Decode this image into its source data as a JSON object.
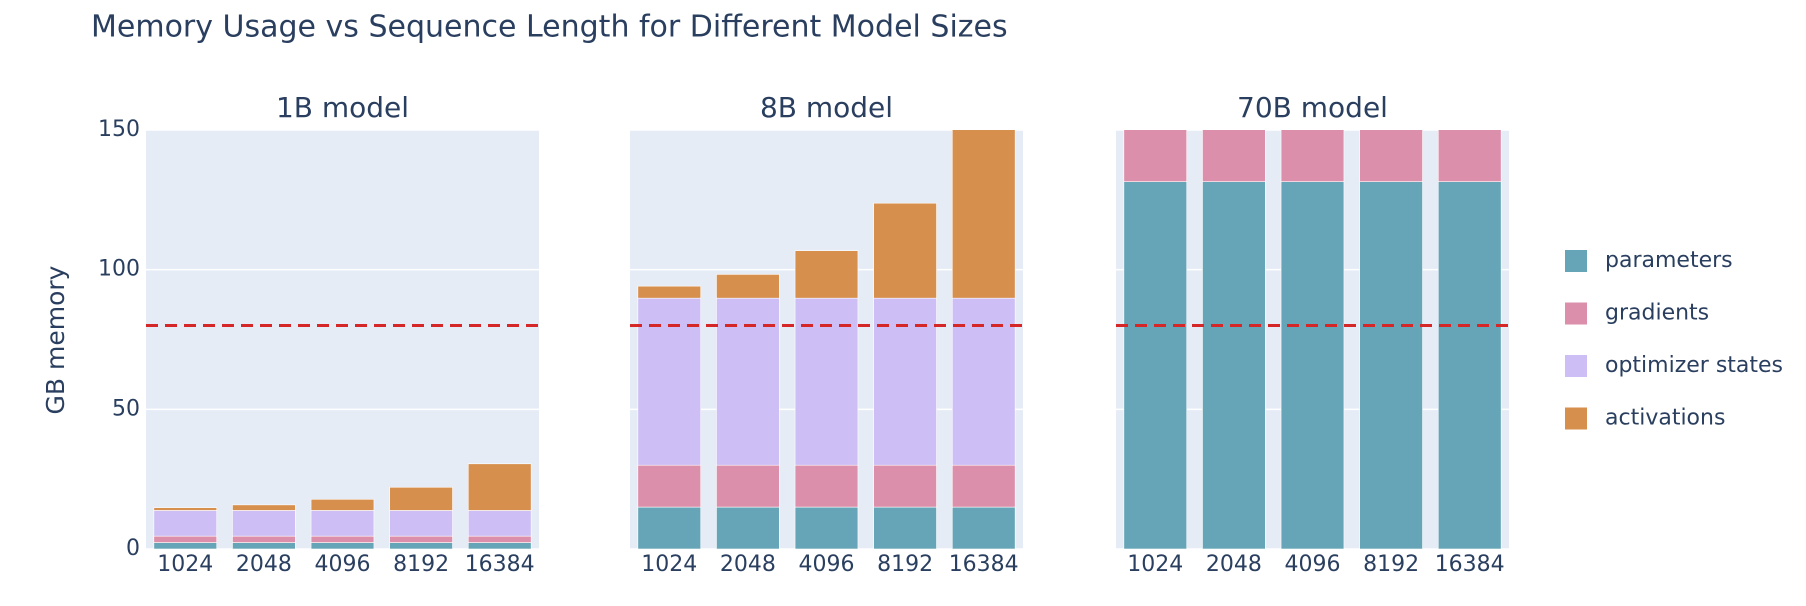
{
  "chart_data": {
    "type": "bar",
    "stacked": true,
    "title": "Memory Usage vs Sequence Length for Different Model Sizes",
    "y_label": "GB memory",
    "ylim": [
      0,
      150
    ],
    "yticks": [
      0,
      50,
      100,
      150
    ],
    "grid": true,
    "threshold": 80,
    "threshold_color": "#d62728",
    "legend": "right",
    "panels": [
      {
        "title": "1B model",
        "categories": [
          "1024",
          "2048",
          "4096",
          "8192",
          "16384"
        ]
      },
      {
        "title": "8B model",
        "categories": [
          "1024",
          "2048",
          "4096",
          "8192",
          "16384"
        ]
      },
      {
        "title": "70B model",
        "categories": [
          "1024",
          "2048",
          "4096",
          "8192",
          "16384"
        ]
      }
    ],
    "series": [
      {
        "name": "parameters",
        "color": "#66a5b7",
        "values": [
          [
            2.3,
            2.3,
            2.3,
            2.3,
            2.3
          ],
          [
            15,
            15,
            15,
            15,
            15
          ],
          [
            131.5,
            131.5,
            131.5,
            131.5,
            131.5
          ]
        ]
      },
      {
        "name": "gradients",
        "color": "#dc8faa",
        "values": [
          [
            2.3,
            2.3,
            2.3,
            2.3,
            2.3
          ],
          [
            15,
            15,
            15,
            15,
            15
          ],
          [
            131.5,
            131.5,
            131.5,
            131.5,
            131.5
          ]
        ]
      },
      {
        "name": "optimizer states",
        "color": "#cdbff5",
        "values": [
          [
            9.2,
            9.2,
            9.2,
            9.2,
            9.2
          ],
          [
            59.8,
            59.8,
            59.8,
            59.8,
            59.8
          ],
          [
            null,
            null,
            null,
            null,
            null
          ]
        ]
      },
      {
        "name": "activations",
        "color": "#d78f4e",
        "values": [
          [
            1,
            2,
            4,
            8.3,
            16.7
          ],
          [
            4.3,
            8.5,
            17,
            34,
            68
          ],
          [
            null,
            null,
            null,
            null,
            null
          ]
        ]
      }
    ]
  }
}
